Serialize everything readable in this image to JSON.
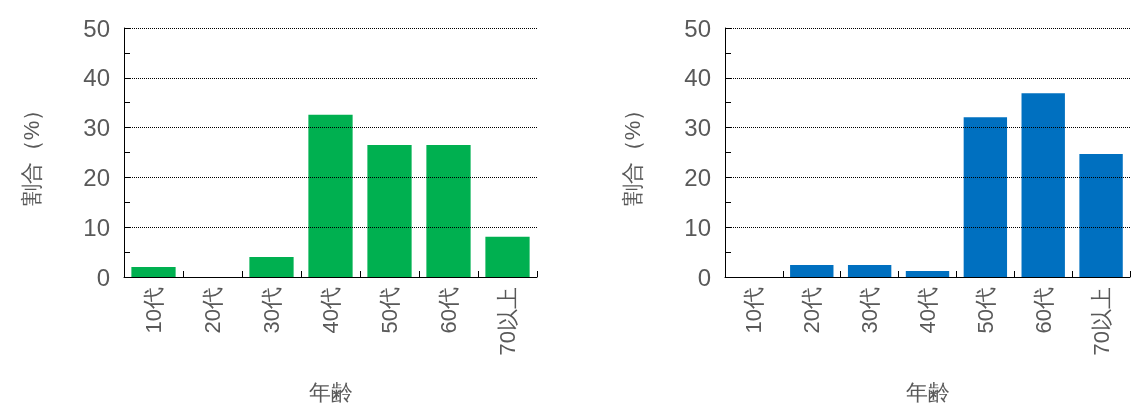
{
  "chart_data": [
    {
      "type": "bar",
      "categories": [
        "10代",
        "20代",
        "30代",
        "40代",
        "50代",
        "60代",
        "70以上"
      ],
      "values": [
        2.0,
        0,
        4.0,
        32.6,
        26.5,
        26.5,
        8.1
      ],
      "color": "#00b050",
      "xlabel": "年齢",
      "ylabel": "割合（%）",
      "ylim": [
        0,
        50
      ],
      "yticks": [
        0,
        {
          "value": 5,
          "label": null
        },
        10,
        {
          "value": 15,
          "label": null
        },
        20,
        {
          "value": 25,
          "label": null
        },
        30,
        {
          "value": 35,
          "label": null
        },
        40,
        {
          "value": 45,
          "label": null
        },
        50
      ],
      "grid": "y"
    },
    {
      "type": "bar",
      "categories": [
        "10代",
        "20代",
        "30代",
        "40代",
        "50代",
        "60代",
        "70以上"
      ],
      "values": [
        0,
        2.4,
        2.4,
        1.2,
        32.1,
        36.9,
        24.7
      ],
      "color": "#0070c0",
      "xlabel": "年齢",
      "ylabel": "割合（%）",
      "ylim": [
        0,
        50
      ],
      "yticks": [
        0,
        {
          "value": 5,
          "label": null
        },
        10,
        {
          "value": 15,
          "label": null
        },
        20,
        {
          "value": 25,
          "label": null
        },
        30,
        {
          "value": 35,
          "label": null
        },
        40,
        {
          "value": 45,
          "label": null
        },
        50
      ],
      "grid": "y"
    }
  ]
}
